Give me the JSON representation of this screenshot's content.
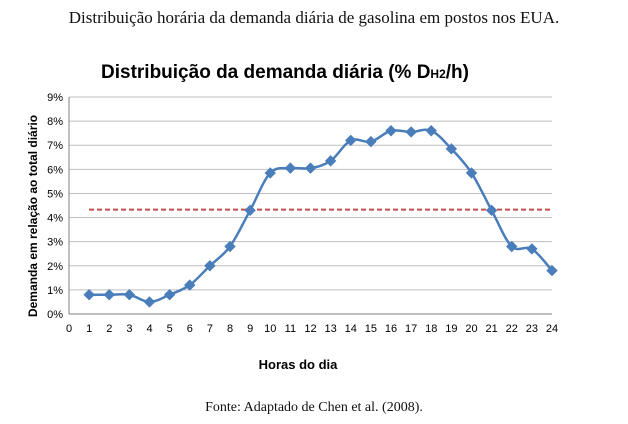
{
  "figure": {
    "caption": "Distribuição horária da demanda diária de gasolina em postos nos EUA.",
    "source": "Fonte: Adaptado de Chen et al. (2008)."
  },
  "chart_data": {
    "type": "line",
    "title_main": "Distribuição da demanda diária (% D",
    "title_sub": "H2",
    "title_end": "/h)",
    "xlabel": "Horas do dia",
    "ylabel": "Demanda em relação ao total diário",
    "xlim": [
      0,
      24
    ],
    "ylim": [
      0,
      9
    ],
    "x_ticks": [
      "0",
      "1",
      "2",
      "3",
      "4",
      "5",
      "6",
      "7",
      "8",
      "9",
      "10",
      "11",
      "12",
      "13",
      "14",
      "15",
      "16",
      "17",
      "18",
      "19",
      "20",
      "21",
      "22",
      "23",
      "24"
    ],
    "y_ticks": [
      "0%",
      "1%",
      "2%",
      "3%",
      "4%",
      "5%",
      "6%",
      "7%",
      "8%",
      "9%"
    ],
    "grid": "horizontal",
    "series": [
      {
        "color": "#4A7EBB",
        "marker": "diamond",
        "x": [
          1,
          2,
          3,
          4,
          5,
          6,
          7,
          8,
          9,
          10,
          11,
          12,
          13,
          14,
          15,
          16,
          17,
          18,
          19,
          20,
          21,
          22,
          23,
          24
        ],
        "values": [
          0.8,
          0.8,
          0.8,
          0.5,
          0.8,
          1.2,
          2.0,
          2.8,
          4.3,
          5.85,
          6.05,
          6.05,
          6.35,
          7.2,
          7.15,
          7.6,
          7.55,
          7.6,
          6.85,
          5.85,
          4.3,
          2.8,
          2.7,
          1.8
        ]
      }
    ],
    "reference_line": {
      "value": 4.33,
      "color": "#C0504D",
      "style": "dashed"
    }
  }
}
